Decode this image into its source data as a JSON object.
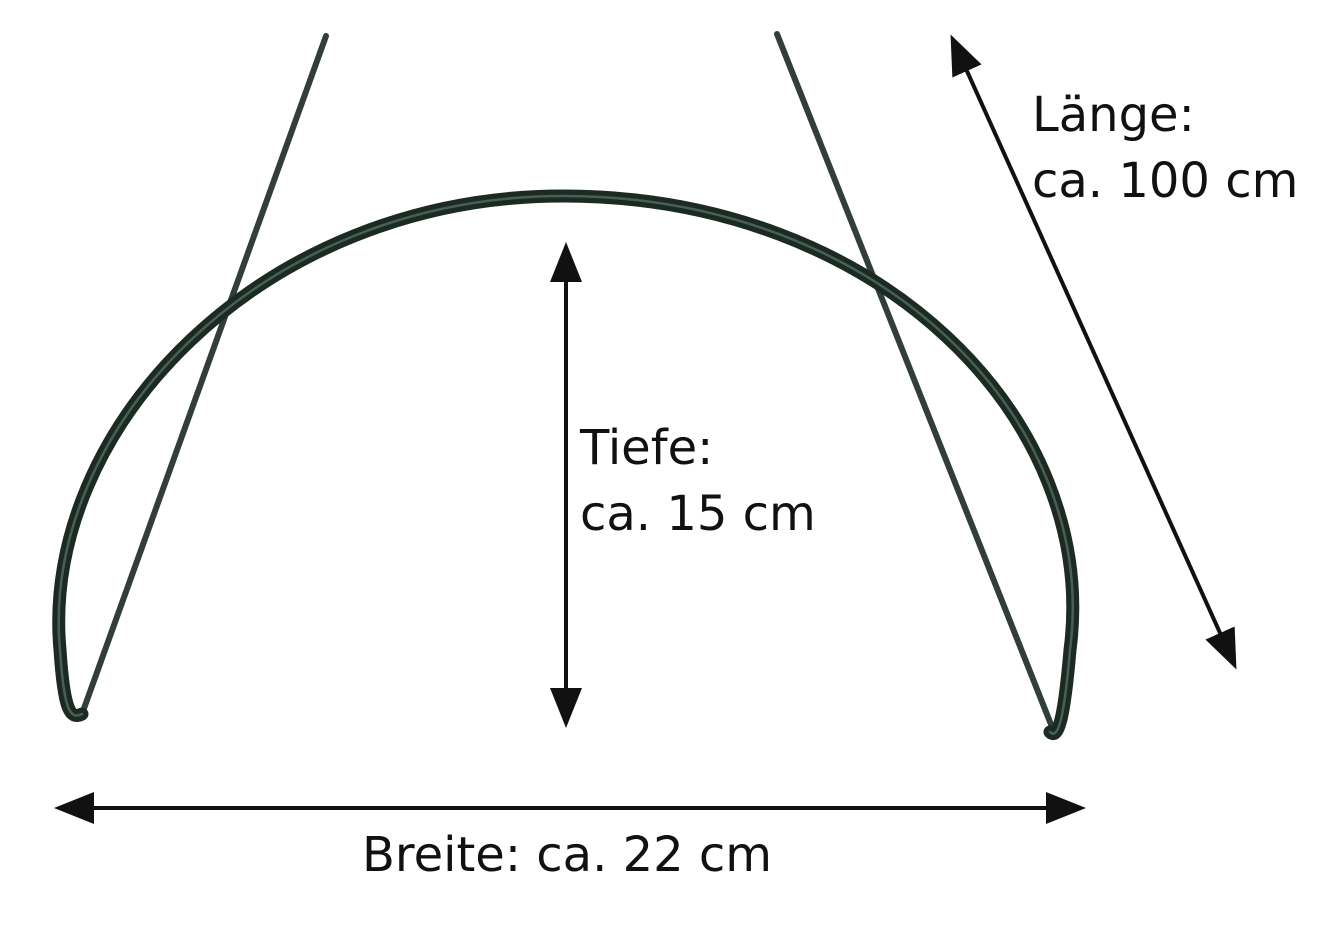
{
  "diagram": {
    "subject": "wire hoop plant support",
    "dimensions": {
      "length": {
        "name": "Länge:",
        "value": "ca. 100 cm"
      },
      "depth": {
        "name": "Tiefe:",
        "value": "ca. 15 cm"
      },
      "width": {
        "text": "Breite: ca. 22 cm"
      }
    }
  },
  "colors": {
    "wire": "#1c2a24",
    "wire_highlight": "#5d7668",
    "arrow": "#111111",
    "background": "#ffffff"
  }
}
